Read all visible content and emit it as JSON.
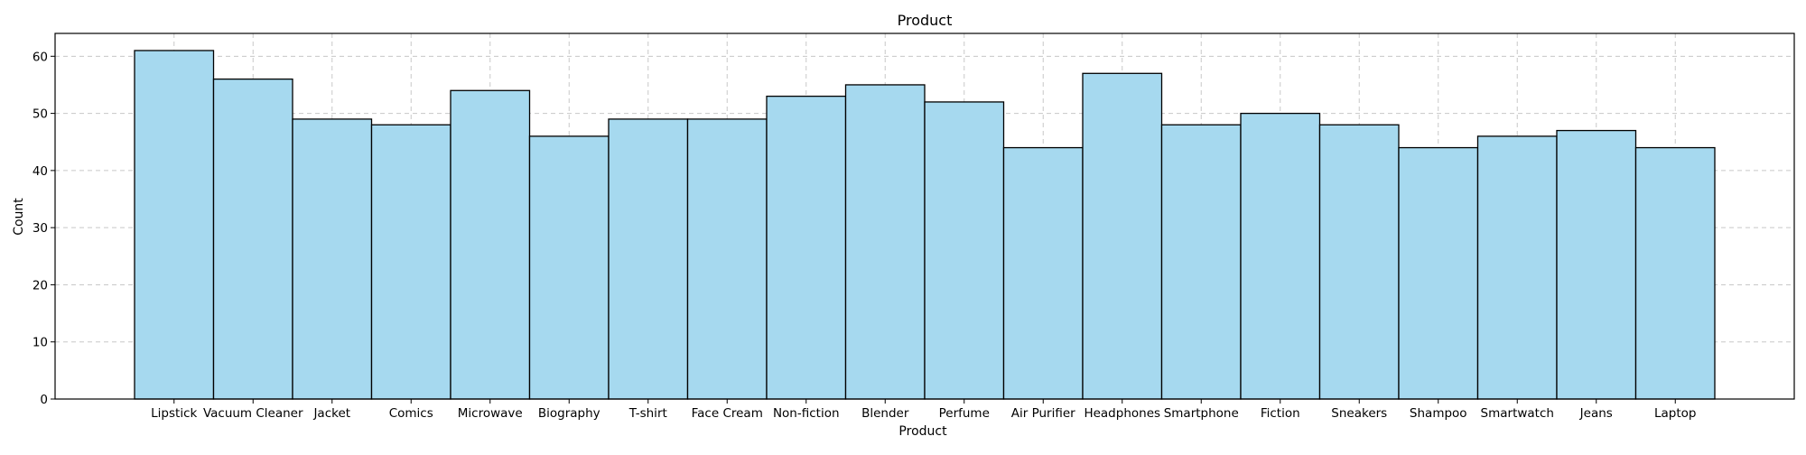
{
  "chart_data": {
    "type": "bar",
    "title": "Product",
    "xlabel": "Product",
    "ylabel": "Count",
    "categories": [
      "Lipstick",
      "Vacuum Cleaner",
      "Jacket",
      "Comics",
      "Microwave",
      "Biography",
      "T-shirt",
      "Face Cream",
      "Non-fiction",
      "Blender",
      "Perfume",
      "Air Purifier",
      "Headphones",
      "Smartphone",
      "Fiction",
      "Sneakers",
      "Shampoo",
      "Smartwatch",
      "Jeans",
      "Laptop"
    ],
    "values": [
      61,
      56,
      49,
      48,
      54,
      46,
      49,
      49,
      53,
      55,
      52,
      44,
      57,
      48,
      50,
      48,
      44,
      46,
      47,
      44
    ],
    "ylim": [
      0,
      64
    ],
    "yticks": [
      0,
      10,
      20,
      30,
      40,
      50,
      60
    ],
    "grid": true,
    "bar_color": "#a6d9ef",
    "edge_color": "#000000",
    "grid_color": "#c8c8c8"
  }
}
